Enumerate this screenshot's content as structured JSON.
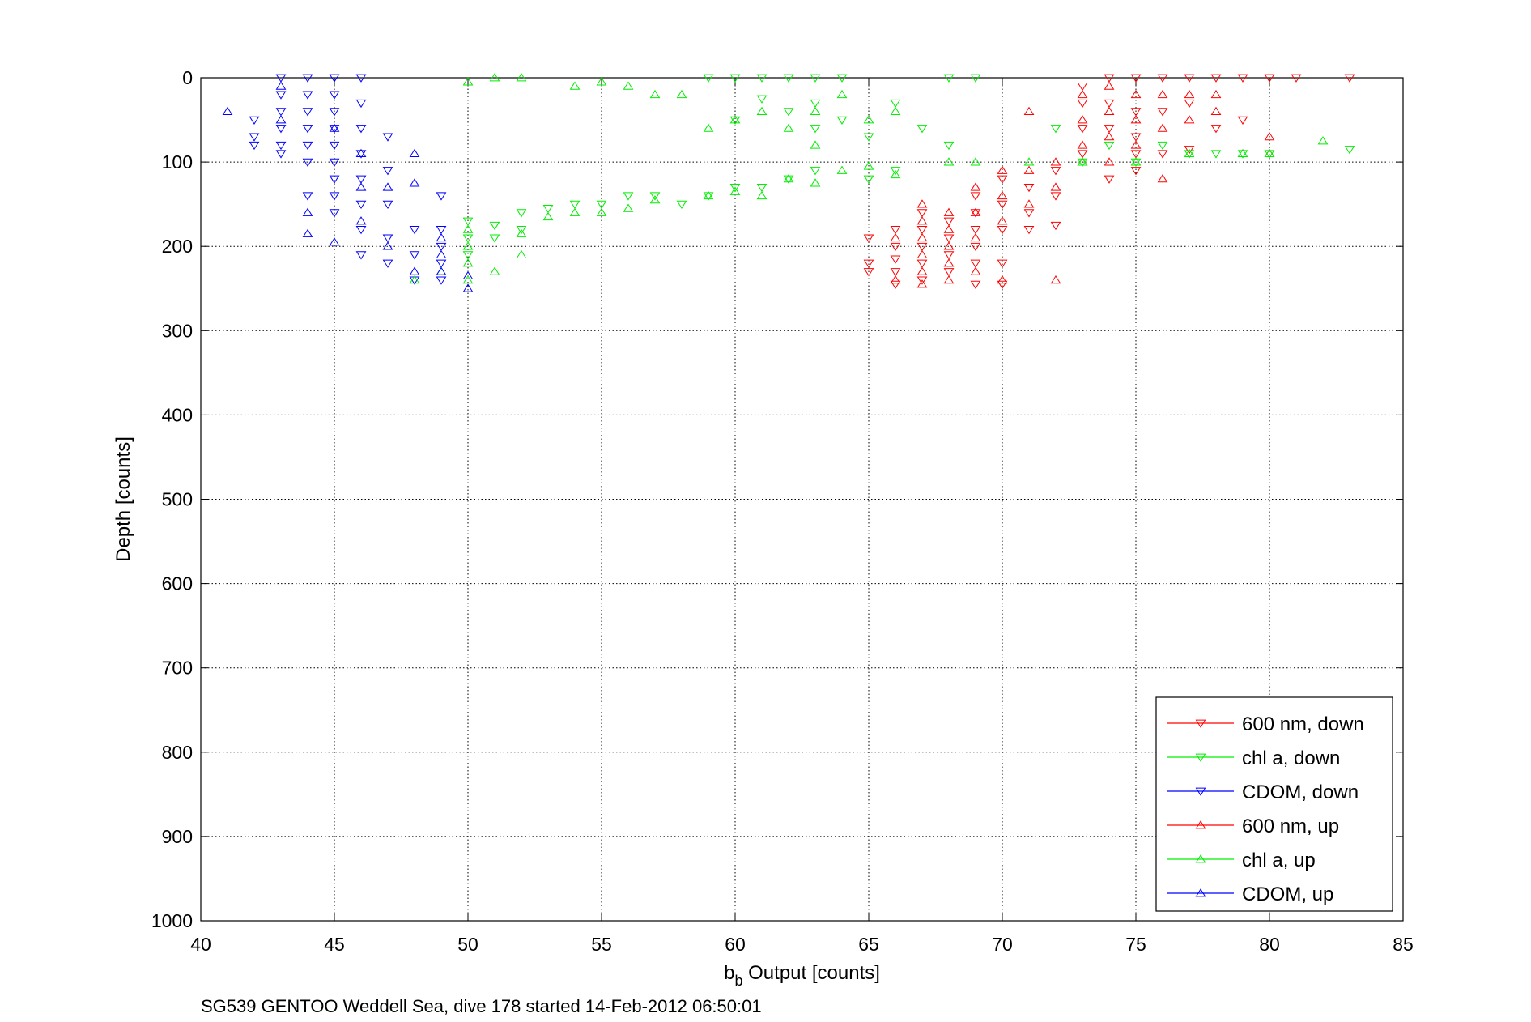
{
  "chart_data": {
    "type": "scatter",
    "xlabel_main": "b",
    "xlabel_sub": "b",
    "xlabel_rest": " Output [counts]",
    "ylabel": "Depth [counts]",
    "caption": "SG539 GENTOO Weddell Sea, dive 178 started 14-Feb-2012 06:50:01",
    "xlim": [
      40,
      85
    ],
    "ylim": [
      0,
      1000
    ],
    "y_reversed": true,
    "grid": true,
    "grid_style": "dotted",
    "x_ticks": [
      40,
      45,
      50,
      55,
      60,
      65,
      70,
      75,
      80,
      85
    ],
    "y_ticks": [
      0,
      100,
      200,
      300,
      400,
      500,
      600,
      700,
      800,
      900,
      1000
    ],
    "legend_position": "bottom-right",
    "series": [
      {
        "name": "600 nm, down",
        "color": "#ff0000",
        "marker": "triangle-down",
        "points": [
          [
            65,
            190
          ],
          [
            65,
            220
          ],
          [
            65,
            230
          ],
          [
            66,
            180
          ],
          [
            66,
            200
          ],
          [
            66,
            215
          ],
          [
            66,
            230
          ],
          [
            66,
            245
          ],
          [
            67,
            160
          ],
          [
            67,
            180
          ],
          [
            67,
            200
          ],
          [
            67,
            220
          ],
          [
            67,
            240
          ],
          [
            68,
            170
          ],
          [
            68,
            190
          ],
          [
            68,
            210
          ],
          [
            68,
            230
          ],
          [
            69,
            140
          ],
          [
            69,
            160
          ],
          [
            69,
            180
          ],
          [
            69,
            200
          ],
          [
            69,
            220
          ],
          [
            69,
            245
          ],
          [
            70,
            120
          ],
          [
            70,
            150
          ],
          [
            70,
            180
          ],
          [
            70,
            220
          ],
          [
            70,
            245
          ],
          [
            71,
            130
          ],
          [
            71,
            160
          ],
          [
            71,
            180
          ],
          [
            72,
            110
          ],
          [
            72,
            140
          ],
          [
            72,
            175
          ],
          [
            73,
            10
          ],
          [
            73,
            30
          ],
          [
            73,
            60
          ],
          [
            73,
            90
          ],
          [
            74,
            0
          ],
          [
            74,
            30
          ],
          [
            74,
            60
          ],
          [
            74,
            120
          ],
          [
            75,
            0
          ],
          [
            75,
            40
          ],
          [
            75,
            70
          ],
          [
            75,
            90
          ],
          [
            75,
            110
          ],
          [
            76,
            0
          ],
          [
            76,
            40
          ],
          [
            76,
            90
          ],
          [
            77,
            0
          ],
          [
            77,
            30
          ],
          [
            77,
            85
          ],
          [
            78,
            0
          ],
          [
            78,
            60
          ],
          [
            79,
            0
          ],
          [
            79,
            50
          ],
          [
            80,
            0
          ],
          [
            81,
            0
          ],
          [
            83,
            0
          ]
        ]
      },
      {
        "name": "chl a, down",
        "color": "#00ee00",
        "marker": "triangle-down",
        "points": [
          [
            50,
            170
          ],
          [
            50,
            190
          ],
          [
            50,
            210
          ],
          [
            51,
            175
          ],
          [
            51,
            190
          ],
          [
            52,
            160
          ],
          [
            52,
            180
          ],
          [
            53,
            155
          ],
          [
            54,
            150
          ],
          [
            55,
            150
          ],
          [
            56,
            140
          ],
          [
            57,
            140
          ],
          [
            58,
            150
          ],
          [
            59,
            140
          ],
          [
            60,
            130
          ],
          [
            60,
            50
          ],
          [
            61,
            130
          ],
          [
            61,
            25
          ],
          [
            62,
            120
          ],
          [
            62,
            0
          ],
          [
            62,
            40
          ],
          [
            63,
            110
          ],
          [
            63,
            0
          ],
          [
            63,
            30
          ],
          [
            63,
            60
          ],
          [
            64,
            0
          ],
          [
            64,
            50
          ],
          [
            65,
            70
          ],
          [
            65,
            120
          ],
          [
            66,
            110
          ],
          [
            66,
            30
          ],
          [
            67,
            60
          ],
          [
            68,
            80
          ],
          [
            68,
            0
          ],
          [
            69,
            0
          ],
          [
            59,
            0
          ],
          [
            60,
            0
          ],
          [
            61,
            0
          ],
          [
            72,
            60
          ],
          [
            73,
            100
          ],
          [
            74,
            80
          ],
          [
            75,
            100
          ],
          [
            76,
            80
          ],
          [
            77,
            90
          ],
          [
            78,
            90
          ],
          [
            79,
            90
          ],
          [
            80,
            90
          ],
          [
            83,
            85
          ]
        ]
      },
      {
        "name": "CDOM, down",
        "color": "#0000ff",
        "marker": "triangle-down",
        "points": [
          [
            42,
            50
          ],
          [
            42,
            70
          ],
          [
            42,
            80
          ],
          [
            43,
            0
          ],
          [
            43,
            20
          ],
          [
            43,
            40
          ],
          [
            43,
            60
          ],
          [
            43,
            80
          ],
          [
            43,
            90
          ],
          [
            44,
            0
          ],
          [
            44,
            20
          ],
          [
            44,
            40
          ],
          [
            44,
            60
          ],
          [
            44,
            80
          ],
          [
            44,
            100
          ],
          [
            44,
            140
          ],
          [
            45,
            0
          ],
          [
            45,
            20
          ],
          [
            45,
            40
          ],
          [
            45,
            60
          ],
          [
            45,
            80
          ],
          [
            45,
            100
          ],
          [
            45,
            120
          ],
          [
            45,
            140
          ],
          [
            45,
            160
          ],
          [
            46,
            0
          ],
          [
            46,
            30
          ],
          [
            46,
            60
          ],
          [
            46,
            90
          ],
          [
            46,
            120
          ],
          [
            46,
            150
          ],
          [
            46,
            180
          ],
          [
            46,
            210
          ],
          [
            47,
            70
          ],
          [
            47,
            110
          ],
          [
            47,
            150
          ],
          [
            47,
            190
          ],
          [
            47,
            220
          ],
          [
            48,
            180
          ],
          [
            48,
            210
          ],
          [
            48,
            240
          ],
          [
            49,
            140
          ],
          [
            49,
            180
          ],
          [
            49,
            200
          ],
          [
            49,
            220
          ],
          [
            49,
            240
          ]
        ]
      },
      {
        "name": "600 nm, up",
        "color": "#ff0000",
        "marker": "triangle-up",
        "points": [
          [
            66,
            190
          ],
          [
            66,
            240
          ],
          [
            67,
            150
          ],
          [
            67,
            170
          ],
          [
            67,
            190
          ],
          [
            67,
            210
          ],
          [
            67,
            230
          ],
          [
            67,
            245
          ],
          [
            68,
            160
          ],
          [
            68,
            180
          ],
          [
            68,
            200
          ],
          [
            68,
            220
          ],
          [
            68,
            240
          ],
          [
            69,
            130
          ],
          [
            69,
            160
          ],
          [
            69,
            190
          ],
          [
            69,
            230
          ],
          [
            70,
            110
          ],
          [
            70,
            140
          ],
          [
            70,
            170
          ],
          [
            70,
            240
          ],
          [
            71,
            40
          ],
          [
            71,
            110
          ],
          [
            71,
            150
          ],
          [
            72,
            100
          ],
          [
            72,
            130
          ],
          [
            72,
            240
          ],
          [
            73,
            20
          ],
          [
            73,
            50
          ],
          [
            73,
            80
          ],
          [
            73,
            100
          ],
          [
            74,
            10
          ],
          [
            74,
            40
          ],
          [
            74,
            70
          ],
          [
            74,
            100
          ],
          [
            75,
            20
          ],
          [
            75,
            50
          ],
          [
            75,
            80
          ],
          [
            76,
            20
          ],
          [
            76,
            60
          ],
          [
            76,
            120
          ],
          [
            77,
            20
          ],
          [
            77,
            50
          ],
          [
            78,
            20
          ],
          [
            78,
            40
          ],
          [
            80,
            70
          ],
          [
            80,
            90
          ]
        ]
      },
      {
        "name": "chl a, up",
        "color": "#00ee00",
        "marker": "triangle-up",
        "points": [
          [
            48,
            240
          ],
          [
            49,
            230
          ],
          [
            50,
            5
          ],
          [
            50,
            180
          ],
          [
            50,
            200
          ],
          [
            50,
            220
          ],
          [
            50,
            240
          ],
          [
            51,
            0
          ],
          [
            51,
            230
          ],
          [
            52,
            0
          ],
          [
            52,
            210
          ],
          [
            52,
            185
          ],
          [
            53,
            165
          ],
          [
            54,
            10
          ],
          [
            54,
            160
          ],
          [
            55,
            5
          ],
          [
            55,
            160
          ],
          [
            56,
            10
          ],
          [
            56,
            155
          ],
          [
            57,
            20
          ],
          [
            57,
            145
          ],
          [
            58,
            20
          ],
          [
            59,
            60
          ],
          [
            59,
            140
          ],
          [
            60,
            50
          ],
          [
            60,
            135
          ],
          [
            61,
            140
          ],
          [
            61,
            40
          ],
          [
            62,
            120
          ],
          [
            62,
            60
          ],
          [
            63,
            40
          ],
          [
            63,
            80
          ],
          [
            63,
            125
          ],
          [
            64,
            20
          ],
          [
            64,
            110
          ],
          [
            65,
            50
          ],
          [
            65,
            105
          ],
          [
            66,
            40
          ],
          [
            66,
            115
          ],
          [
            68,
            100
          ],
          [
            69,
            100
          ],
          [
            71,
            100
          ],
          [
            73,
            100
          ],
          [
            75,
            100
          ],
          [
            77,
            90
          ],
          [
            79,
            90
          ],
          [
            80,
            90
          ],
          [
            82,
            75
          ]
        ]
      },
      {
        "name": "CDOM, up",
        "color": "#0000ff",
        "marker": "triangle-up",
        "points": [
          [
            41,
            40
          ],
          [
            43,
            10
          ],
          [
            43,
            50
          ],
          [
            44,
            160
          ],
          [
            44,
            185
          ],
          [
            45,
            195
          ],
          [
            45,
            60
          ],
          [
            46,
            90
          ],
          [
            46,
            130
          ],
          [
            46,
            170
          ],
          [
            47,
            130
          ],
          [
            47,
            200
          ],
          [
            48,
            90
          ],
          [
            48,
            125
          ],
          [
            48,
            230
          ],
          [
            49,
            190
          ],
          [
            49,
            210
          ],
          [
            49,
            230
          ],
          [
            50,
            235
          ],
          [
            50,
            250
          ]
        ]
      }
    ]
  }
}
